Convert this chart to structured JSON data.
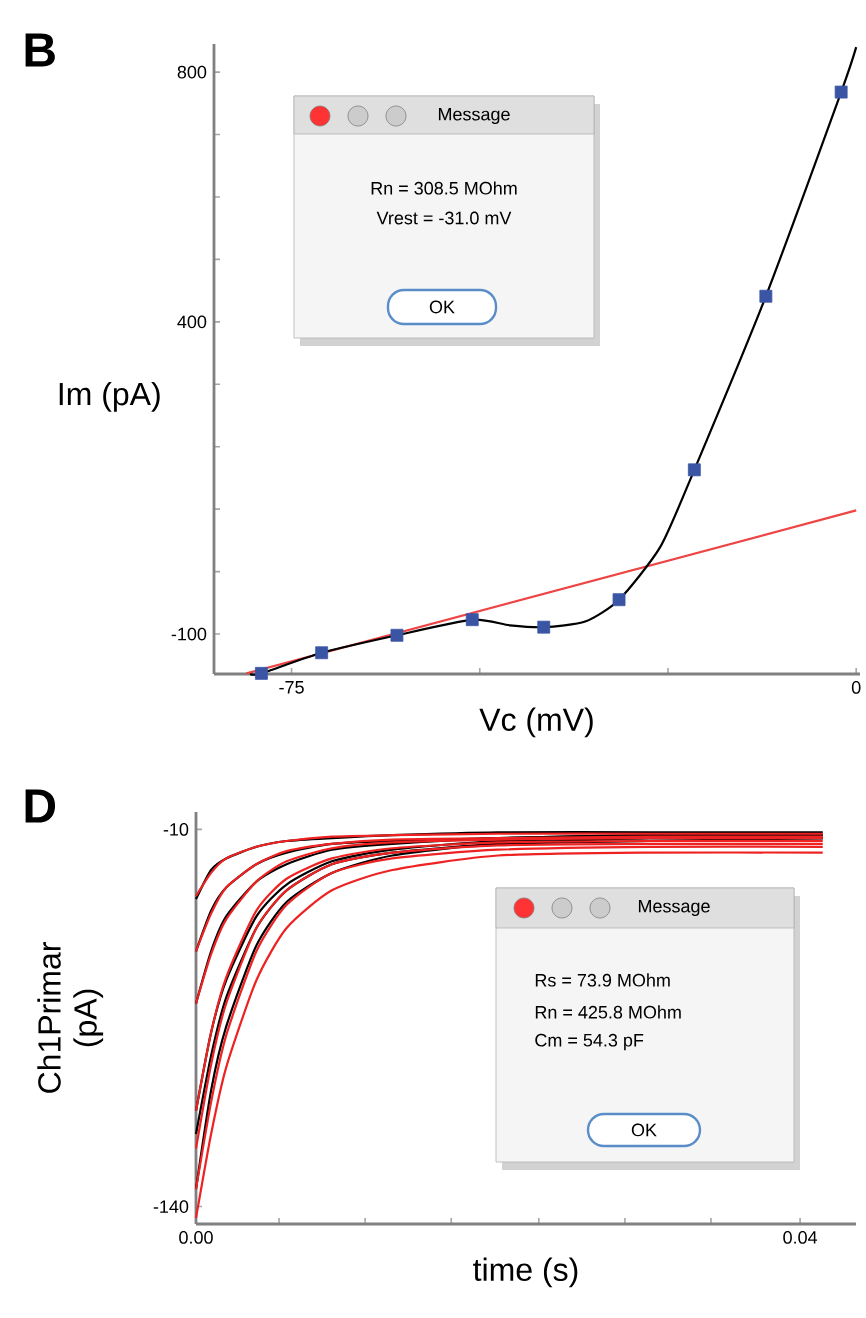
{
  "chart_data": [
    {
      "type": "line",
      "xlabel": "Vc (mV)",
      "ylabel": "Im (pA)",
      "xlim": [
        -85.3,
        0.5
      ],
      "ylim": [
        -164,
        845
      ],
      "xticks": [
        -75,
        {
          "value": -50,
          "label": null
        },
        {
          "value": -25,
          "label": null
        },
        0
      ],
      "yticks": [
        -100,
        {
          "value": 0,
          "label": null
        },
        {
          "value": 100,
          "label": null
        },
        {
          "value": 200,
          "label": null
        },
        {
          "value": 300,
          "label": null
        },
        400,
        {
          "value": 500,
          "label": null
        },
        {
          "value": 600,
          "label": null
        },
        {
          "value": 700,
          "label": null
        },
        800
      ],
      "annotations": [
        "B",
        "Message",
        "Rn = 308.5 MOhm",
        "Vrest  = -31.0 mV",
        "OK"
      ],
      "series": [
        {
          "type": "line",
          "color": "#ee4444",
          "x": [
            -81,
            0
          ],
          "values": [
            -163,
            98
          ]
        },
        {
          "type": "line",
          "color": "#000000",
          "x": [
            -80.5,
            -79,
            -71,
            -61,
            -51,
            -46,
            -41.5,
            -36,
            -31.5,
            -26,
            -21.5,
            -12,
            -2,
            0
          ],
          "values": [
            -164,
            -163,
            -130,
            -102,
            -77,
            -86,
            -89,
            -80,
            -45,
            40,
            163,
            441,
            768,
            840
          ]
        },
        {
          "type": "scatter",
          "color": "#3a55a4",
          "marker": "square",
          "x": [
            -79,
            -71,
            -61,
            -51,
            -41.5,
            -31.5,
            -21.5,
            -12,
            -2
          ],
          "values": [
            -163,
            -130,
            -102,
            -77,
            -89,
            -45,
            163,
            441,
            768
          ]
        }
      ]
    },
    {
      "type": "line",
      "xlabel": "time (s)",
      "ylabel": "Ch1Primar (pA)",
      "xlim": [
        0,
        0.0437
      ],
      "ylim": [
        -146,
        -4
      ],
      "xticks": [
        {
          "value": 0,
          "label": "0.00"
        },
        {
          "value": 0.0055,
          "label": null
        },
        {
          "value": 0.0112,
          "label": null
        },
        {
          "value": 0.0169,
          "label": null
        },
        {
          "value": 0.0227,
          "label": null
        },
        {
          "value": 0.0284,
          "label": null
        },
        {
          "value": 0.0341,
          "label": null
        },
        {
          "value": 0.04,
          "label": "0.04"
        }
      ],
      "yticks": [
        -10,
        -140
      ],
      "annotations": [
        "D",
        "Message",
        "Rs = 73.9  MOhm",
        "Rn = 425.8 MOhm",
        "Cm = 54.3 pF",
        "OK"
      ],
      "x": [
        0,
        0.001,
        0.002,
        0.004,
        0.006,
        0.009,
        0.013,
        0.02,
        0.03,
        0.0415
      ],
      "series": [
        {
          "color": "#000000",
          "values": [
            -34,
            -24,
            -20,
            -16,
            -14,
            -13,
            -12,
            -11,
            -11,
            -11
          ]
        },
        {
          "color": "#000000",
          "values": [
            -52,
            -38,
            -30,
            -22,
            -18,
            -15,
            -14,
            -13,
            -12,
            -12
          ]
        },
        {
          "color": "#000000",
          "values": [
            -70,
            -52,
            -40,
            -28,
            -22,
            -17,
            -15,
            -13,
            -12,
            -12
          ]
        },
        {
          "color": "#000000",
          "values": [
            -107,
            -80,
            -62,
            -40,
            -29,
            -21,
            -17,
            -14,
            -13,
            -13
          ]
        },
        {
          "color": "#000000",
          "values": [
            -115,
            -88,
            -68,
            -44,
            -31,
            -22,
            -18,
            -15,
            -13,
            -13
          ]
        },
        {
          "color": "#000000",
          "values": [
            -134,
            -100,
            -78,
            -50,
            -35,
            -25,
            -19,
            -15,
            -14,
            -13
          ]
        },
        {
          "color": "#ee2222",
          "values": [
            -33,
            -25,
            -20,
            -16,
            -14,
            -12.5,
            -12,
            -11.5,
            -11.5,
            -11.5
          ]
        },
        {
          "color": "#ee2222",
          "values": [
            -52,
            -39,
            -30,
            -22,
            -17.5,
            -15,
            -13.5,
            -13,
            -12.5,
            -12.5
          ]
        },
        {
          "color": "#ee2222",
          "values": [
            -70,
            -53,
            -41,
            -28,
            -21,
            -16.5,
            -14.5,
            -13.5,
            -13,
            -13
          ]
        },
        {
          "color": "#ee2222",
          "values": [
            -107,
            -80,
            -61,
            -38,
            -27,
            -20,
            -16.5,
            -14.5,
            -14,
            -14
          ]
        },
        {
          "color": "#ee2222",
          "values": [
            -120,
            -91,
            -70,
            -44,
            -31,
            -22,
            -18,
            -15.5,
            -15,
            -15
          ]
        },
        {
          "color": "#ee2222",
          "values": [
            -134,
            -104,
            -81,
            -52,
            -36,
            -25,
            -20,
            -17,
            -16,
            -16
          ]
        },
        {
          "color": "#ee2222",
          "values": [
            -144,
            -115,
            -92,
            -62,
            -44,
            -31,
            -24,
            -19,
            -18,
            -18
          ]
        }
      ]
    }
  ]
}
